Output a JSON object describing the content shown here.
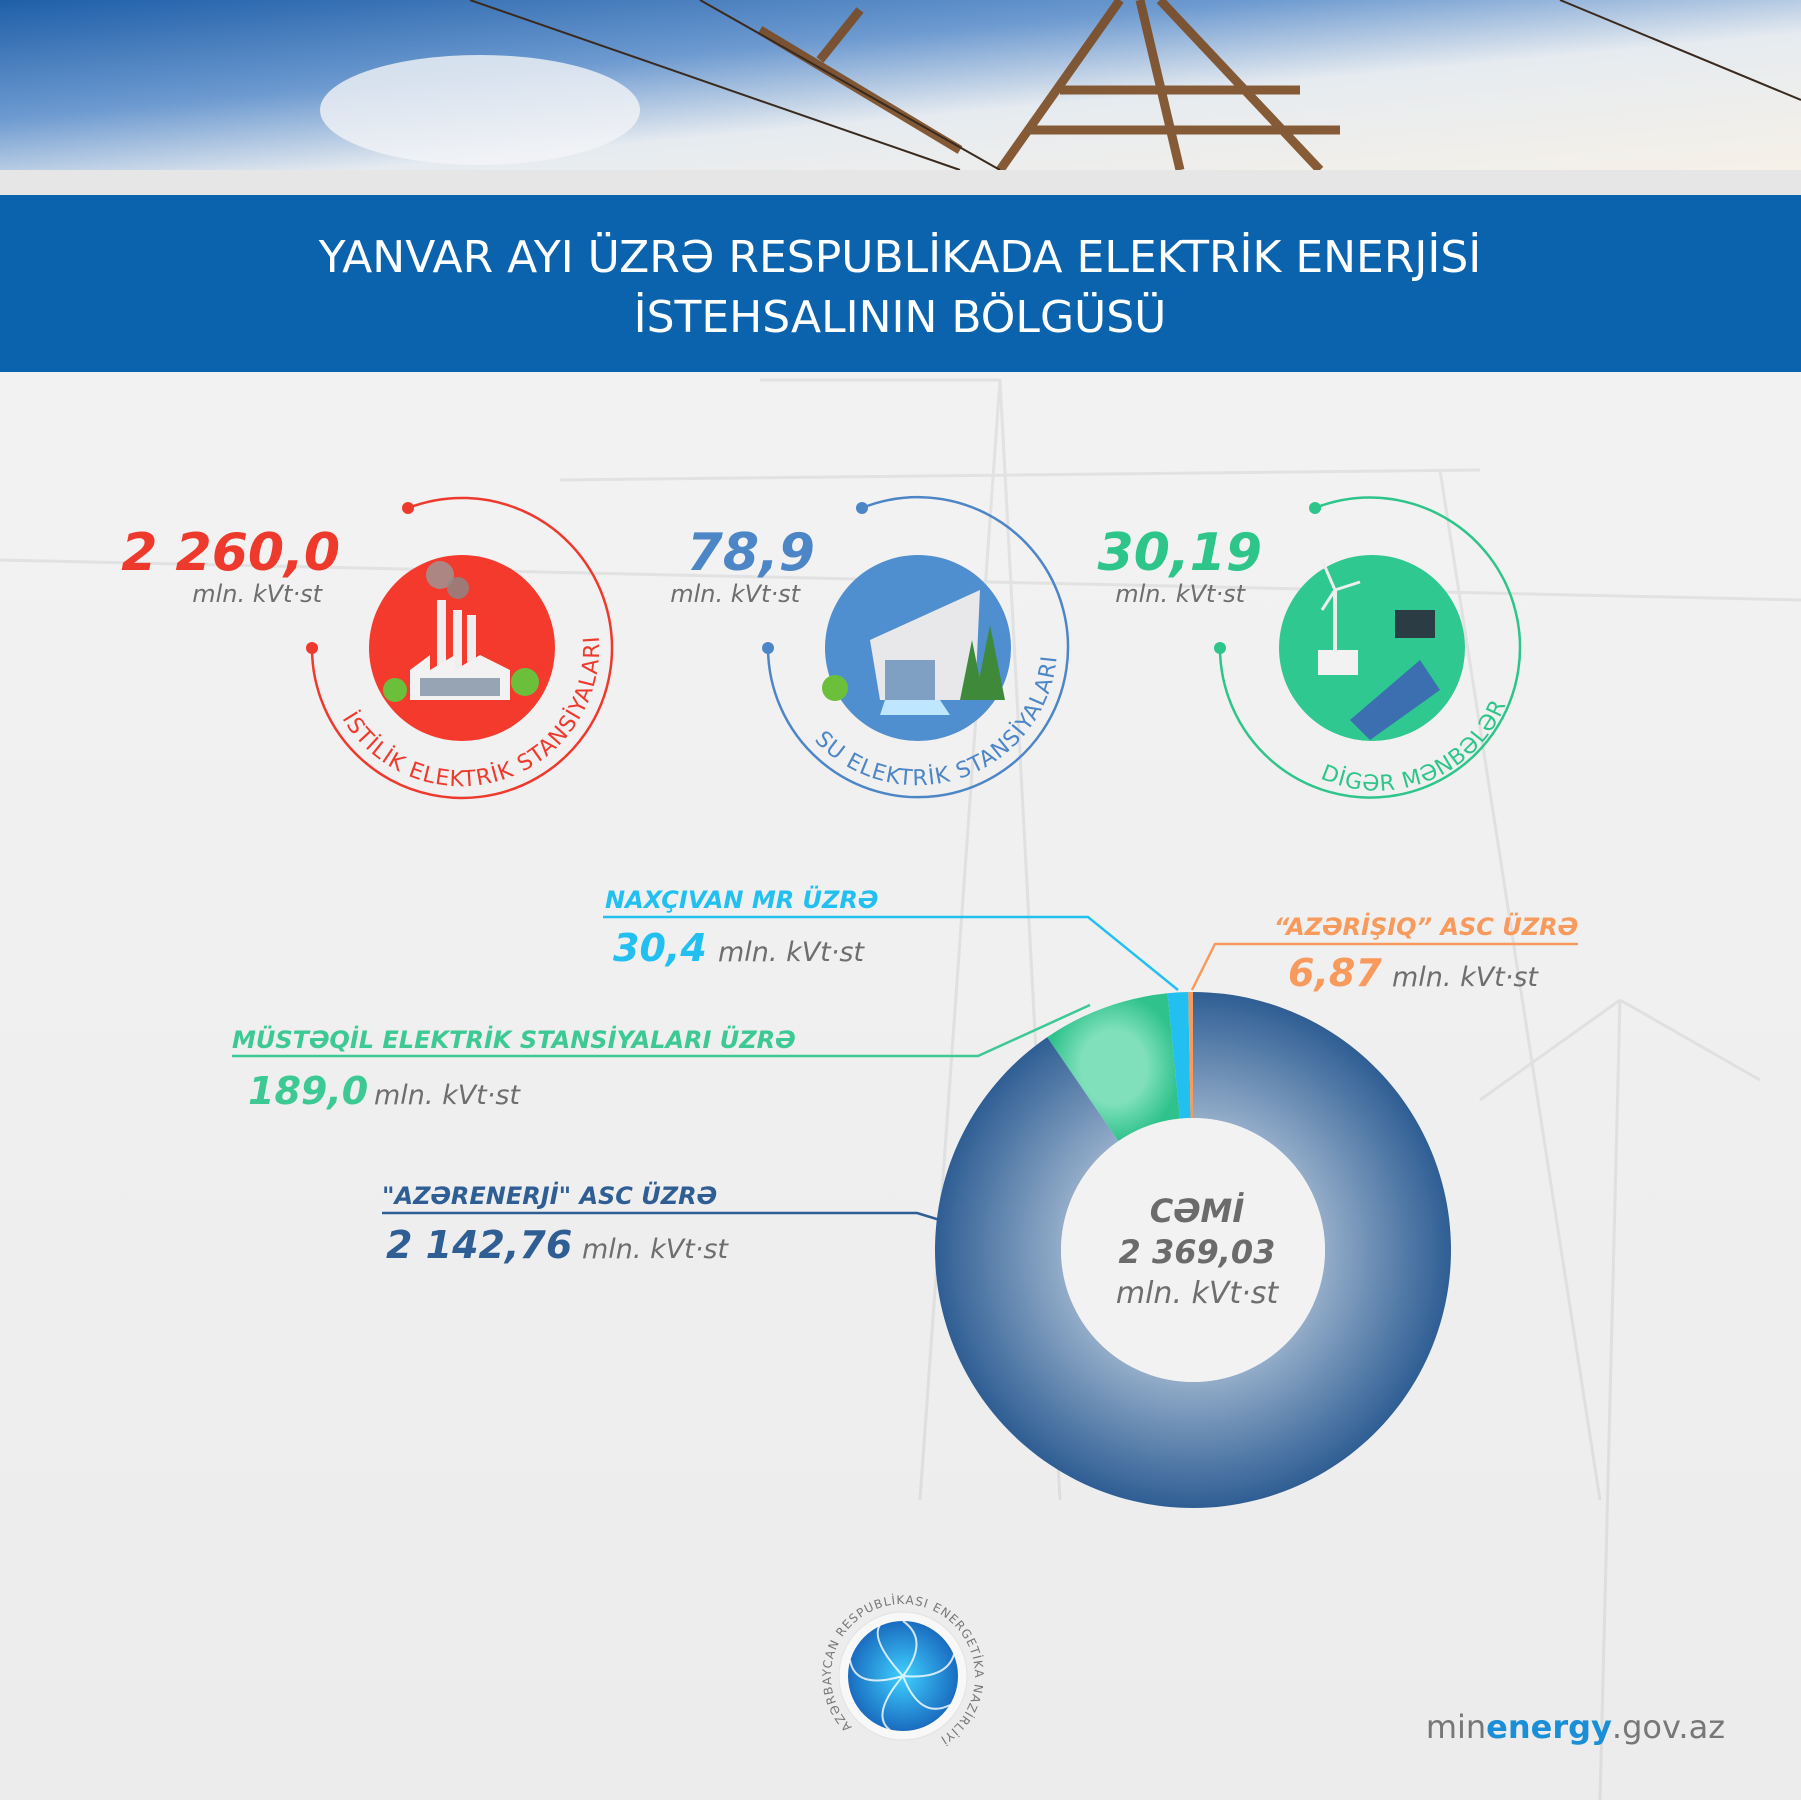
{
  "header": {
    "title_line1": "YANVAR AYI ÜZRƏ RESPUBLİKADA ELEKTRİK ENERJİSİ",
    "title_line2": "İSTEHSALININ  BÖLGÜSÜ"
  },
  "sources": [
    {
      "value": "2 260,0",
      "unit": "mln. kVt·st",
      "label": "İSTİLİK ELEKTRİK STANSİYALARI",
      "color": "#ee3a2d",
      "icon": "thermal-power-plant-icon"
    },
    {
      "value": "78,9",
      "unit": "mln. kVt·st",
      "label": "SU ELEKTRİK STANSİYALARI",
      "color": "#4d86c6",
      "icon": "hydro-power-dam-icon"
    },
    {
      "value": "30,19",
      "unit": "mln. kVt·st",
      "label": "DİGƏR MƏNBƏLƏR",
      "color": "#2ec58a",
      "icon": "renewable-energy-icon"
    }
  ],
  "chart_data": {
    "type": "pie",
    "variant": "donut",
    "center_label": {
      "title": "CƏMİ",
      "value": "2 369,03",
      "unit": "mln. kVt·st"
    },
    "total": 2369.03,
    "unit": "mln. kVt·st",
    "series": [
      {
        "name": "\"AZƏRENERJİ\" ASC ÜZRƏ",
        "value": 2142.76,
        "label": "2 142,76",
        "color": "#2f5e94"
      },
      {
        "name": "MÜSTƏQİL ELEKTRİK STANSİYALARI ÜZRƏ",
        "value": 189.0,
        "label": "189,0",
        "color": "#3cc994"
      },
      {
        "name": "NAXÇIVAN MR ÜZRƏ",
        "value": 30.4,
        "label": "30,4",
        "color": "#22c0f0"
      },
      {
        "name": "“AZƏRİŞIQ” ASC ÜZRƏ",
        "value": 6.87,
        "label": "6,87",
        "color": "#f79a5c"
      }
    ]
  },
  "footer": {
    "logo_text": "AZƏRBAYCAN RESPUBLİKASI ENERGETİKA NAZİRLİYİ",
    "site_prefix": "min",
    "site_brand": "energy",
    "site_suffix": ".gov.az"
  }
}
